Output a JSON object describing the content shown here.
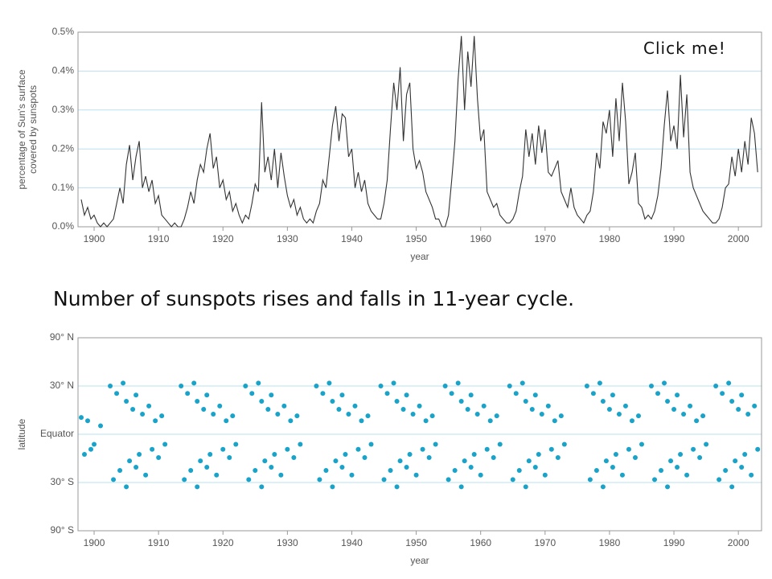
{
  "button": "Click me!",
  "caption": "Number of sunspots rises and falls in 11-year cycle.",
  "chart_data": [
    {
      "type": "line",
      "ylabel": [
        "percentage of Sun's surface",
        "covered by sunspots"
      ],
      "xlabel": "year",
      "color": "#333333",
      "grid": true,
      "xlim": [
        1897.5,
        2003.6
      ],
      "xticks": [
        1900,
        1910,
        1920,
        1930,
        1940,
        1950,
        1960,
        1970,
        1980,
        1990,
        2000
      ],
      "ylim": [
        0,
        0.5
      ],
      "yticks": [
        {
          "value": 0,
          "label": "0.0%"
        },
        {
          "value": 0.1,
          "label": "0.1%"
        },
        {
          "value": 0.2,
          "label": "0.2%"
        },
        {
          "value": 0.3,
          "label": "0.3%"
        },
        {
          "value": 0.4,
          "label": "0.4%"
        },
        {
          "value": 0.5,
          "label": "0.5%"
        }
      ],
      "x": [
        1898,
        1898.5,
        1899,
        1899.5,
        1900,
        1900.5,
        1901,
        1901.5,
        1902,
        1902.5,
        1903,
        1903.5,
        1904,
        1904.5,
        1905,
        1905.5,
        1906,
        1906.5,
        1907,
        1907.5,
        1908,
        1908.5,
        1909,
        1909.5,
        1910,
        1910.5,
        1911,
        1911.5,
        1912,
        1912.5,
        1913,
        1913.5,
        1914,
        1914.5,
        1915,
        1915.5,
        1916,
        1916.5,
        1917,
        1917.5,
        1918,
        1918.5,
        1919,
        1919.5,
        1920,
        1920.5,
        1921,
        1921.5,
        1922,
        1922.5,
        1923,
        1923.5,
        1924,
        1924.5,
        1925,
        1925.5,
        1926,
        1926.5,
        1927,
        1927.5,
        1928,
        1928.5,
        1929,
        1929.5,
        1930,
        1930.5,
        1931,
        1931.5,
        1932,
        1932.5,
        1933,
        1933.5,
        1934,
        1934.5,
        1935,
        1935.5,
        1936,
        1936.5,
        1937,
        1937.5,
        1938,
        1938.5,
        1939,
        1939.5,
        1940,
        1940.5,
        1941,
        1941.5,
        1942,
        1942.5,
        1943,
        1943.5,
        1944,
        1944.5,
        1945,
        1945.5,
        1946,
        1946.5,
        1947,
        1947.5,
        1948,
        1948.5,
        1949,
        1949.5,
        1950,
        1950.5,
        1951,
        1951.5,
        1952,
        1952.5,
        1953,
        1953.5,
        1954,
        1954.5,
        1955,
        1955.5,
        1956,
        1956.5,
        1957,
        1957.5,
        1958,
        1958.5,
        1959,
        1959.5,
        1960,
        1960.5,
        1961,
        1961.5,
        1962,
        1962.5,
        1963,
        1963.5,
        1964,
        1964.5,
        1965,
        1965.5,
        1966,
        1966.5,
        1967,
        1967.5,
        1968,
        1968.5,
        1969,
        1969.5,
        1970,
        1970.5,
        1971,
        1971.5,
        1972,
        1972.5,
        1973,
        1973.5,
        1974,
        1974.5,
        1975,
        1975.5,
        1976,
        1976.5,
        1977,
        1977.5,
        1978,
        1978.5,
        1979,
        1979.5,
        1980,
        1980.5,
        1981,
        1981.5,
        1982,
        1982.5,
        1983,
        1983.5,
        1984,
        1984.5,
        1985,
        1985.5,
        1986,
        1986.5,
        1987,
        1987.5,
        1988,
        1988.5,
        1989,
        1989.5,
        1990,
        1990.5,
        1991,
        1991.5,
        1992,
        1992.5,
        1993,
        1993.5,
        1994,
        1994.5,
        1995,
        1995.5,
        1996,
        1996.5,
        1997,
        1997.5,
        1998,
        1998.5,
        1999,
        1999.5,
        2000,
        2000.5,
        2001,
        2001.5,
        2002,
        2002.5,
        2003
      ],
      "values": [
        0.07,
        0.03,
        0.05,
        0.02,
        0.03,
        0.01,
        0.0,
        0.01,
        0.0,
        0.01,
        0.02,
        0.06,
        0.1,
        0.06,
        0.16,
        0.21,
        0.12,
        0.18,
        0.22,
        0.1,
        0.13,
        0.09,
        0.12,
        0.06,
        0.08,
        0.03,
        0.02,
        0.01,
        0.0,
        0.01,
        0.0,
        0.0,
        0.02,
        0.05,
        0.09,
        0.06,
        0.12,
        0.16,
        0.14,
        0.2,
        0.24,
        0.15,
        0.18,
        0.1,
        0.12,
        0.07,
        0.09,
        0.04,
        0.06,
        0.03,
        0.01,
        0.03,
        0.02,
        0.06,
        0.11,
        0.09,
        0.32,
        0.14,
        0.18,
        0.12,
        0.2,
        0.1,
        0.19,
        0.13,
        0.08,
        0.05,
        0.07,
        0.03,
        0.05,
        0.02,
        0.01,
        0.02,
        0.01,
        0.04,
        0.06,
        0.12,
        0.1,
        0.18,
        0.26,
        0.31,
        0.22,
        0.29,
        0.28,
        0.18,
        0.2,
        0.1,
        0.14,
        0.09,
        0.12,
        0.06,
        0.04,
        0.03,
        0.02,
        0.02,
        0.06,
        0.12,
        0.25,
        0.37,
        0.3,
        0.41,
        0.22,
        0.34,
        0.37,
        0.2,
        0.15,
        0.17,
        0.14,
        0.09,
        0.07,
        0.05,
        0.02,
        0.02,
        0.0,
        0.0,
        0.03,
        0.12,
        0.22,
        0.38,
        0.49,
        0.3,
        0.45,
        0.36,
        0.49,
        0.33,
        0.22,
        0.25,
        0.09,
        0.07,
        0.05,
        0.06,
        0.03,
        0.02,
        0.01,
        0.01,
        0.02,
        0.04,
        0.09,
        0.13,
        0.25,
        0.18,
        0.24,
        0.16,
        0.26,
        0.19,
        0.25,
        0.14,
        0.13,
        0.15,
        0.17,
        0.09,
        0.07,
        0.05,
        0.1,
        0.05,
        0.03,
        0.02,
        0.01,
        0.03,
        0.04,
        0.09,
        0.19,
        0.15,
        0.27,
        0.24,
        0.3,
        0.18,
        0.33,
        0.22,
        0.37,
        0.27,
        0.11,
        0.14,
        0.19,
        0.06,
        0.05,
        0.02,
        0.03,
        0.02,
        0.04,
        0.08,
        0.15,
        0.26,
        0.35,
        0.22,
        0.26,
        0.2,
        0.39,
        0.23,
        0.34,
        0.14,
        0.1,
        0.08,
        0.06,
        0.04,
        0.03,
        0.02,
        0.01,
        0.01,
        0.02,
        0.05,
        0.1,
        0.11,
        0.18,
        0.13,
        0.2,
        0.14,
        0.22,
        0.16,
        0.28,
        0.24,
        0.14
      ]
    },
    {
      "type": "scatter",
      "ylabel": "latitude",
      "xlabel": "year",
      "color": "#1aa3c8",
      "grid": true,
      "yscale": "sine",
      "xlim": [
        1897.5,
        2003.6
      ],
      "xticks": [
        1900,
        1910,
        1920,
        1930,
        1940,
        1950,
        1960,
        1970,
        1980,
        1990,
        2000
      ],
      "ylim": [
        -90,
        90
      ],
      "yticks": [
        {
          "value": 90,
          "label": "90° N"
        },
        {
          "value": 30,
          "label": "30° N"
        },
        {
          "value": 0,
          "label": "Equator"
        },
        {
          "value": -30,
          "label": "30° S"
        },
        {
          "value": -90,
          "label": "90° S"
        }
      ],
      "x": [
        1898,
        1898.5,
        1899,
        1899.5,
        1900,
        1901,
        1902.5,
        1903.5,
        1904.5,
        1905,
        1906,
        1906.5,
        1907.5,
        1908.5,
        1909.5,
        1910.5,
        1903,
        1904,
        1905,
        1905.5,
        1906.5,
        1907,
        1908,
        1909,
        1910,
        1911,
        1913.5,
        1914.5,
        1915.5,
        1916,
        1917,
        1917.5,
        1918.5,
        1919.5,
        1920.5,
        1921.5,
        1914,
        1915,
        1916,
        1916.5,
        1917.5,
        1918,
        1919,
        1920,
        1921,
        1922,
        1923.5,
        1924.5,
        1925.5,
        1926,
        1927,
        1927.5,
        1928.5,
        1929.5,
        1930.5,
        1931.5,
        1924,
        1925,
        1926,
        1926.5,
        1927.5,
        1928,
        1929,
        1930,
        1931,
        1932,
        1934.5,
        1935.5,
        1936.5,
        1937,
        1938,
        1938.5,
        1939.5,
        1940.5,
        1941.5,
        1942.5,
        1935,
        1936,
        1937,
        1937.5,
        1938.5,
        1939,
        1940,
        1941,
        1942,
        1943,
        1944.5,
        1945.5,
        1946.5,
        1947,
        1948,
        1948.5,
        1949.5,
        1950.5,
        1951.5,
        1952.5,
        1945,
        1946,
        1947,
        1947.5,
        1948.5,
        1949,
        1950,
        1951,
        1952,
        1953,
        1954.5,
        1955.5,
        1956.5,
        1957,
        1958,
        1958.5,
        1959.5,
        1960.5,
        1961.5,
        1962.5,
        1955,
        1956,
        1957,
        1957.5,
        1958.5,
        1959,
        1960,
        1961,
        1962,
        1963,
        1964.5,
        1965.5,
        1966.5,
        1967,
        1968,
        1968.5,
        1969.5,
        1970.5,
        1971.5,
        1972.5,
        1965,
        1966,
        1967,
        1967.5,
        1968.5,
        1969,
        1970,
        1971,
        1972,
        1973,
        1976.5,
        1977.5,
        1978.5,
        1979,
        1980,
        1980.5,
        1981.5,
        1982.5,
        1983.5,
        1984.5,
        1977,
        1978,
        1979,
        1979.5,
        1980.5,
        1981,
        1982,
        1983,
        1984,
        1985,
        1986.5,
        1987.5,
        1988.5,
        1989,
        1990,
        1990.5,
        1991.5,
        1992.5,
        1993.5,
        1994.5,
        1987,
        1988,
        1989,
        1989.5,
        1990.5,
        1991,
        1992,
        1993,
        1994,
        1995,
        1996.5,
        1997.5,
        1998.5,
        1999,
        2000,
        2000.5,
        2001.5,
        2002.5,
        1997,
        1998,
        1999,
        1999.5,
        2000.5,
        2001,
        2002,
        2003
      ],
      "values": [
        10,
        -12,
        8,
        -9,
        -6,
        5,
        30,
        25,
        32,
        20,
        15,
        24,
        12,
        17,
        8,
        11,
        -28,
        -22,
        -33,
        -16,
        -20,
        -12,
        -25,
        -9,
        -14,
        -6,
        30,
        25,
        32,
        20,
        15,
        24,
        12,
        17,
        8,
        11,
        -28,
        -22,
        -33,
        -16,
        -20,
        -12,
        -25,
        -9,
        -14,
        -6,
        30,
        25,
        32,
        20,
        15,
        24,
        12,
        17,
        8,
        11,
        -28,
        -22,
        -33,
        -16,
        -20,
        -12,
        -25,
        -9,
        -14,
        -6,
        30,
        25,
        32,
        20,
        15,
        24,
        12,
        17,
        8,
        11,
        -28,
        -22,
        -33,
        -16,
        -20,
        -12,
        -25,
        -9,
        -14,
        -6,
        30,
        25,
        32,
        20,
        15,
        24,
        12,
        17,
        8,
        11,
        -28,
        -22,
        -33,
        -16,
        -20,
        -12,
        -25,
        -9,
        -14,
        -6,
        30,
        25,
        32,
        20,
        15,
        24,
        12,
        17,
        8,
        11,
        -28,
        -22,
        -33,
        -16,
        -20,
        -12,
        -25,
        -9,
        -14,
        -6,
        30,
        25,
        32,
        20,
        15,
        24,
        12,
        17,
        8,
        11,
        -28,
        -22,
        -33,
        -16,
        -20,
        -12,
        -25,
        -9,
        -14,
        -6,
        30,
        25,
        32,
        20,
        15,
        24,
        12,
        17,
        8,
        11,
        -28,
        -22,
        -33,
        -16,
        -20,
        -12,
        -25,
        -9,
        -14,
        -6,
        30,
        25,
        32,
        20,
        15,
        24,
        12,
        17,
        8,
        11,
        -28,
        -22,
        -33,
        -16,
        -20,
        -12,
        -25,
        -9,
        -14,
        -6,
        30,
        25,
        32,
        20,
        15,
        24,
        12,
        17,
        -28,
        -22,
        -33,
        -16,
        -20,
        -12,
        -25,
        -9
      ]
    }
  ]
}
